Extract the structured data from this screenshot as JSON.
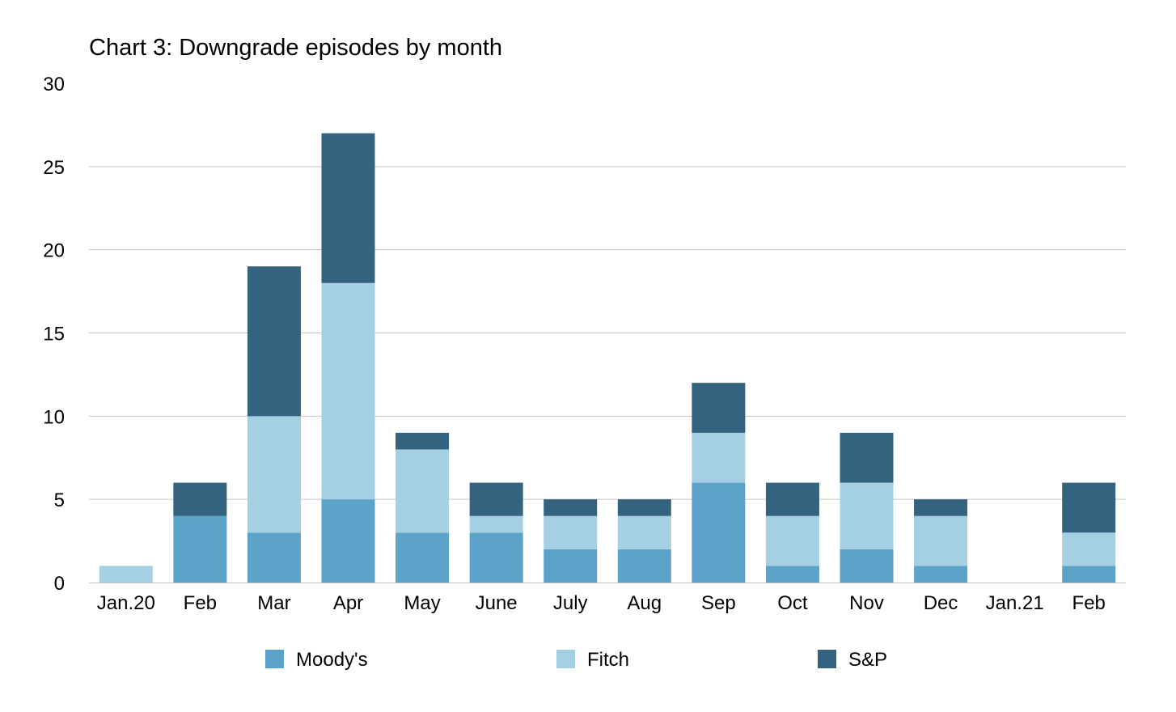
{
  "chart_data": {
    "type": "bar",
    "stacked": true,
    "title": "Chart 3: Downgrade episodes by month",
    "xlabel": "",
    "ylabel": "",
    "ylim": [
      0,
      30
    ],
    "yticks": [
      "0",
      "5",
      "10",
      "15",
      "20",
      "25",
      "30"
    ],
    "grid": true,
    "legend_position": "bottom",
    "categories": [
      "Jan.20",
      "Feb",
      "Mar",
      "Apr",
      "May",
      "June",
      "July",
      "Aug",
      "Sep",
      "Oct",
      "Nov",
      "Dec",
      "Jan.21",
      "Feb"
    ],
    "series": [
      {
        "name": "Moody's",
        "color": "#5BA3C9",
        "values": [
          0,
          4,
          3,
          5,
          3,
          3,
          2,
          2,
          6,
          1,
          2,
          1,
          0,
          1
        ]
      },
      {
        "name": "Fitch",
        "color": "#A5CFE3",
        "values": [
          1,
          0,
          7,
          13,
          5,
          1,
          2,
          2,
          3,
          3,
          4,
          3,
          0,
          2
        ]
      },
      {
        "name": "S&P",
        "color": "#33637E",
        "values": [
          0,
          2,
          9,
          9,
          1,
          2,
          1,
          1,
          3,
          2,
          3,
          1,
          0,
          3
        ]
      }
    ]
  }
}
